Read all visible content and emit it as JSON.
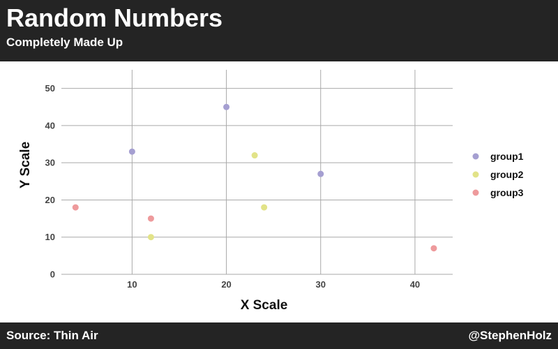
{
  "header": {
    "title": "Random Numbers",
    "subtitle": "Completely Made Up"
  },
  "footer": {
    "source": "Source: Thin Air",
    "handle": "@StephenHolz"
  },
  "chart_data": {
    "type": "scatter",
    "xlabel": "X Scale",
    "ylabel": "Y Scale",
    "xlim": [
      2.5,
      44
    ],
    "ylim": [
      0,
      55
    ],
    "xticks": [
      10,
      20,
      30,
      40
    ],
    "yticks": [
      0,
      10,
      20,
      30,
      40,
      50
    ],
    "grid": true,
    "legend_position": "right",
    "series": [
      {
        "name": "group1",
        "color": "#a59fd1",
        "points": [
          {
            "x": 10,
            "y": 33
          },
          {
            "x": 20,
            "y": 45
          },
          {
            "x": 30,
            "y": 27
          }
        ]
      },
      {
        "name": "group2",
        "color": "#e2e388",
        "points": [
          {
            "x": 12,
            "y": 10
          },
          {
            "x": 23,
            "y": 32
          },
          {
            "x": 24,
            "y": 18
          }
        ]
      },
      {
        "name": "group3",
        "color": "#ee9a9c",
        "points": [
          {
            "x": 4,
            "y": 18
          },
          {
            "x": 12,
            "y": 15
          },
          {
            "x": 42,
            "y": 7
          }
        ]
      }
    ]
  }
}
